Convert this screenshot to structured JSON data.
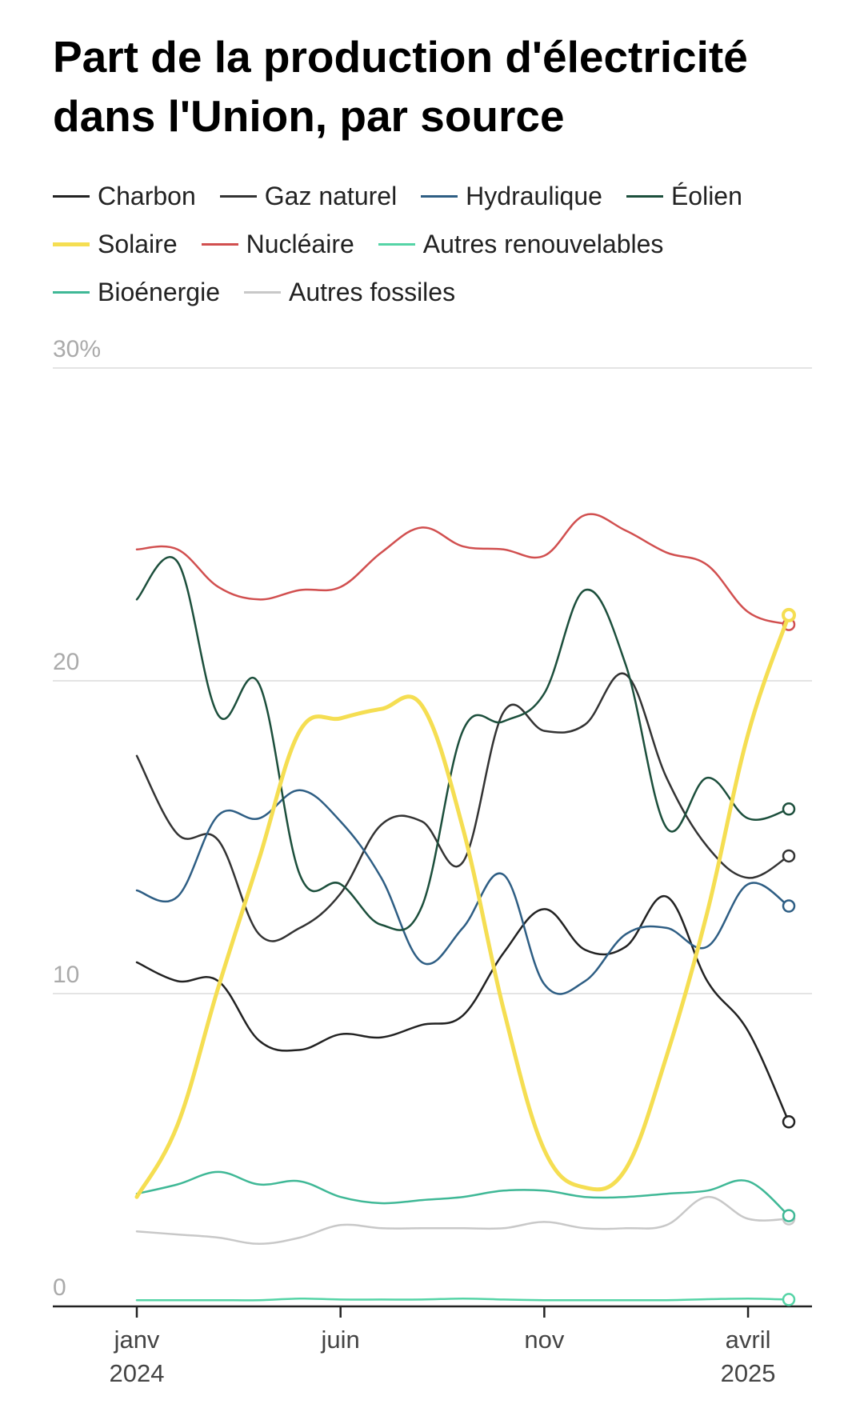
{
  "chart_data": {
    "type": "line",
    "title": "Part de la production d'électricité dans l'Union, par source",
    "y_unit": "%",
    "ylim": [
      0,
      30
    ],
    "y_ticks": [
      "30%",
      "20",
      "10",
      "0"
    ],
    "x": [
      "2024-01",
      "2024-02",
      "2024-03",
      "2024-04",
      "2024-05",
      "2024-06",
      "2024-07",
      "2024-08",
      "2024-09",
      "2024-10",
      "2024-11",
      "2024-12",
      "2025-01",
      "2025-02",
      "2025-03",
      "2025-04",
      "2025-05"
    ],
    "x_ticks": [
      {
        "label": "janv",
        "year": "2024"
      },
      {
        "label": "juin",
        "year": ""
      },
      {
        "label": "nov",
        "year": ""
      },
      {
        "label": "avril",
        "year": "2025"
      }
    ],
    "grid": true,
    "legend_position": "top",
    "series": [
      {
        "name": "Charbon",
        "color": "#222222",
        "width": 2.5,
        "values": [
          11.0,
          10.4,
          10.4,
          8.5,
          8.2,
          8.7,
          8.6,
          9.0,
          9.3,
          11.3,
          12.7,
          11.4,
          11.5,
          13.1,
          10.4,
          8.8,
          5.9
        ]
      },
      {
        "name": "Gaz naturel",
        "color": "#333333",
        "width": 2.5,
        "values": [
          17.6,
          15.1,
          14.9,
          11.9,
          12.1,
          13.2,
          15.4,
          15.5,
          14.2,
          19.0,
          18.4,
          18.6,
          20.2,
          16.9,
          14.7,
          13.7,
          14.4
        ]
      },
      {
        "name": "Hydraulique",
        "color": "#2e5e84",
        "width": 2.5,
        "values": [
          13.3,
          13.1,
          15.7,
          15.6,
          16.5,
          15.5,
          13.7,
          11.0,
          12.1,
          13.8,
          10.3,
          10.4,
          11.9,
          12.1,
          11.5,
          13.5,
          12.8
        ]
      },
      {
        "name": "Éolien",
        "color": "#1c4f3c",
        "width": 2.5,
        "values": [
          22.6,
          23.8,
          18.9,
          19.9,
          13.8,
          13.5,
          12.2,
          12.8,
          18.4,
          18.7,
          19.6,
          22.9,
          20.5,
          15.3,
          16.9,
          15.6,
          15.9
        ]
      },
      {
        "name": "Solaire",
        "color": "#f5de52",
        "width": 5,
        "values": [
          3.5,
          5.8,
          10.2,
          14.3,
          18.4,
          18.8,
          19.1,
          19.2,
          15.3,
          9.5,
          5.0,
          3.8,
          4.4,
          8.0,
          12.6,
          18.3,
          22.1
        ]
      },
      {
        "name": "Nucléaire",
        "color": "#d14f4f",
        "width": 2.5,
        "values": [
          24.2,
          24.2,
          23.0,
          22.6,
          22.9,
          23.0,
          24.1,
          24.9,
          24.3,
          24.2,
          24.0,
          25.3,
          24.8,
          24.1,
          23.7,
          22.2,
          21.8
        ]
      },
      {
        "name": "Autres renouvelables",
        "color": "#55d4a6",
        "width": 2.5,
        "values": [
          0.2,
          0.2,
          0.2,
          0.2,
          0.25,
          0.22,
          0.22,
          0.22,
          0.25,
          0.22,
          0.2,
          0.2,
          0.2,
          0.2,
          0.23,
          0.25,
          0.22
        ]
      },
      {
        "name": "Bioénergie",
        "color": "#3fb896",
        "width": 2.5,
        "values": [
          3.6,
          3.9,
          4.3,
          3.9,
          4.0,
          3.5,
          3.3,
          3.4,
          3.5,
          3.7,
          3.7,
          3.5,
          3.5,
          3.6,
          3.7,
          4.0,
          2.9
        ]
      },
      {
        "name": "Autres fossiles",
        "color": "#c8c8c8",
        "width": 2.5,
        "values": [
          2.4,
          2.3,
          2.2,
          2.0,
          2.2,
          2.6,
          2.5,
          2.5,
          2.5,
          2.5,
          2.7,
          2.5,
          2.5,
          2.6,
          3.5,
          2.8,
          2.8
        ]
      }
    ]
  }
}
